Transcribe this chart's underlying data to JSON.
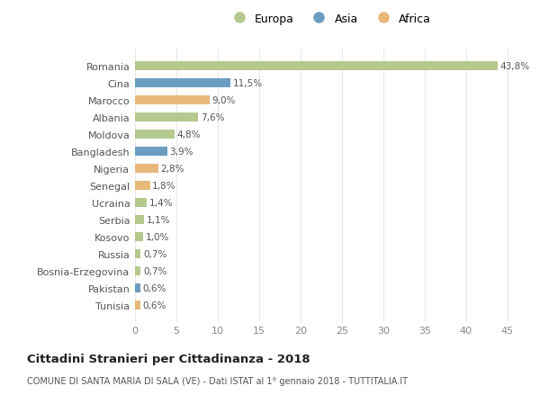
{
  "countries": [
    "Romania",
    "Cina",
    "Marocco",
    "Albania",
    "Moldova",
    "Bangladesh",
    "Nigeria",
    "Senegal",
    "Ucraina",
    "Serbia",
    "Kosovo",
    "Russia",
    "Bosnia-Erzegovina",
    "Pakistan",
    "Tunisia"
  ],
  "values": [
    43.8,
    11.5,
    9.0,
    7.6,
    4.8,
    3.9,
    2.8,
    1.8,
    1.4,
    1.1,
    1.0,
    0.7,
    0.7,
    0.6,
    0.6
  ],
  "labels": [
    "43,8%",
    "11,5%",
    "9,0%",
    "7,6%",
    "4,8%",
    "3,9%",
    "2,8%",
    "1,8%",
    "1,4%",
    "1,1%",
    "1,0%",
    "0,7%",
    "0,7%",
    "0,6%",
    "0,6%"
  ],
  "continents": [
    "Europa",
    "Asia",
    "Africa",
    "Europa",
    "Europa",
    "Asia",
    "Africa",
    "Africa",
    "Europa",
    "Europa",
    "Europa",
    "Europa",
    "Europa",
    "Asia",
    "Africa"
  ],
  "continent_colors": {
    "Europa": "#b5c98e",
    "Asia": "#6b9dc2",
    "Africa": "#e8b87a"
  },
  "legend_labels": [
    "Europa",
    "Asia",
    "Africa"
  ],
  "legend_colors": [
    "#b5c98e",
    "#6b9dc2",
    "#e8b87a"
  ],
  "title": "Cittadini Stranieri per Cittadinanza - 2018",
  "subtitle": "COMUNE DI SANTA MARIA DI SALA (VE) - Dati ISTAT al 1° gennaio 2018 - TUTTITALIA.IT",
  "xlim": [
    0,
    47
  ],
  "xticks": [
    0,
    5,
    10,
    15,
    20,
    25,
    30,
    35,
    40,
    45
  ],
  "background_color": "#ffffff",
  "grid_color": "#e8e8e8",
  "bar_height": 0.55
}
